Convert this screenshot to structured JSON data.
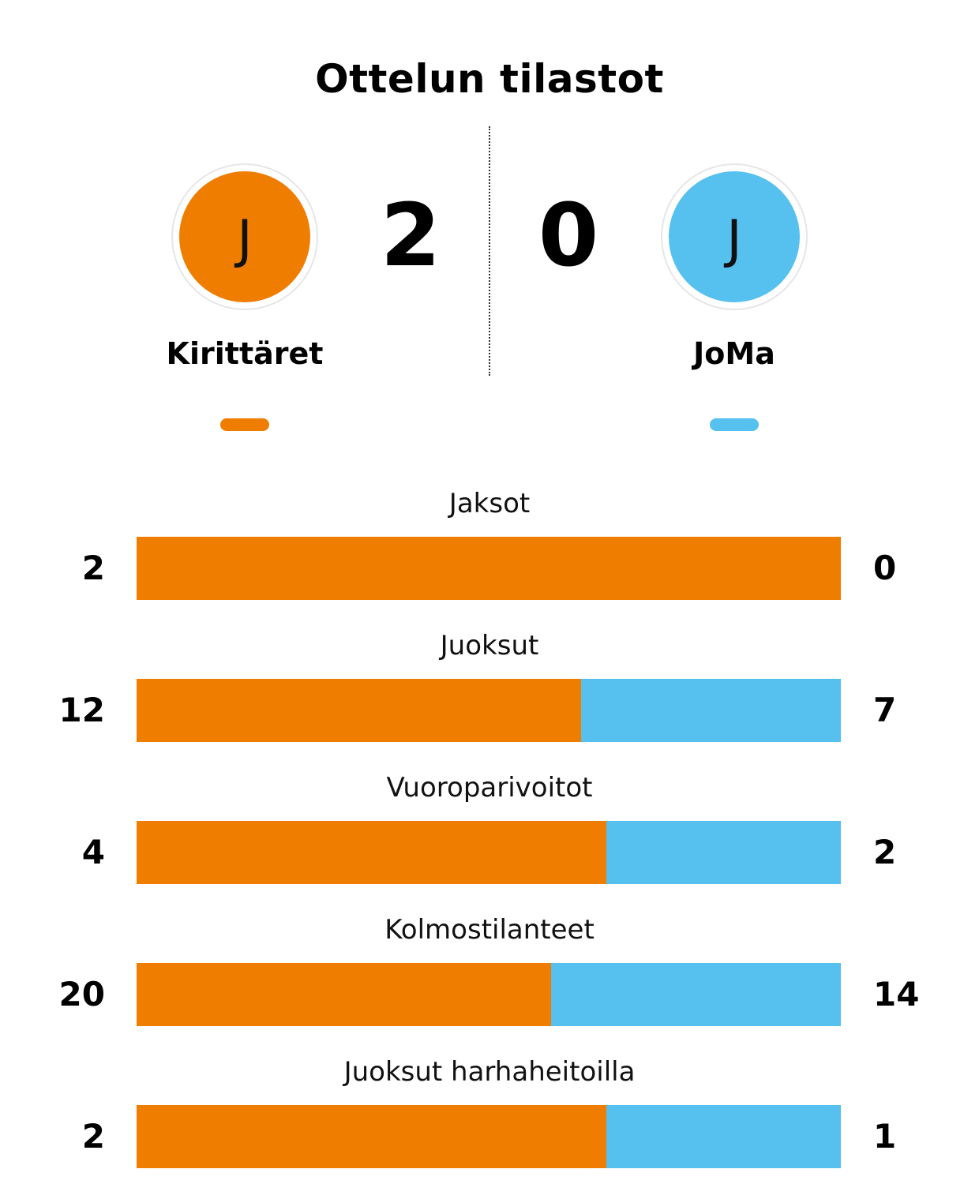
{
  "title": "Ottelun tilastot",
  "colors": {
    "home": "#ef7d00",
    "away": "#56c0ef"
  },
  "home": {
    "name": "Kirittäret",
    "logo_letter": "J",
    "score": "2"
  },
  "away": {
    "name": "JoMa",
    "logo_letter": "J",
    "score": "0"
  },
  "stats": [
    {
      "label": "Jaksot",
      "home": 2,
      "away": 0
    },
    {
      "label": "Juoksut",
      "home": 12,
      "away": 7
    },
    {
      "label": "Vuoroparivoitot",
      "home": 4,
      "away": 2
    },
    {
      "label": "Kolmostilanteet",
      "home": 20,
      "away": 14
    },
    {
      "label": "Juoksut harhaheitoilla",
      "home": 2,
      "away": 1
    }
  ]
}
